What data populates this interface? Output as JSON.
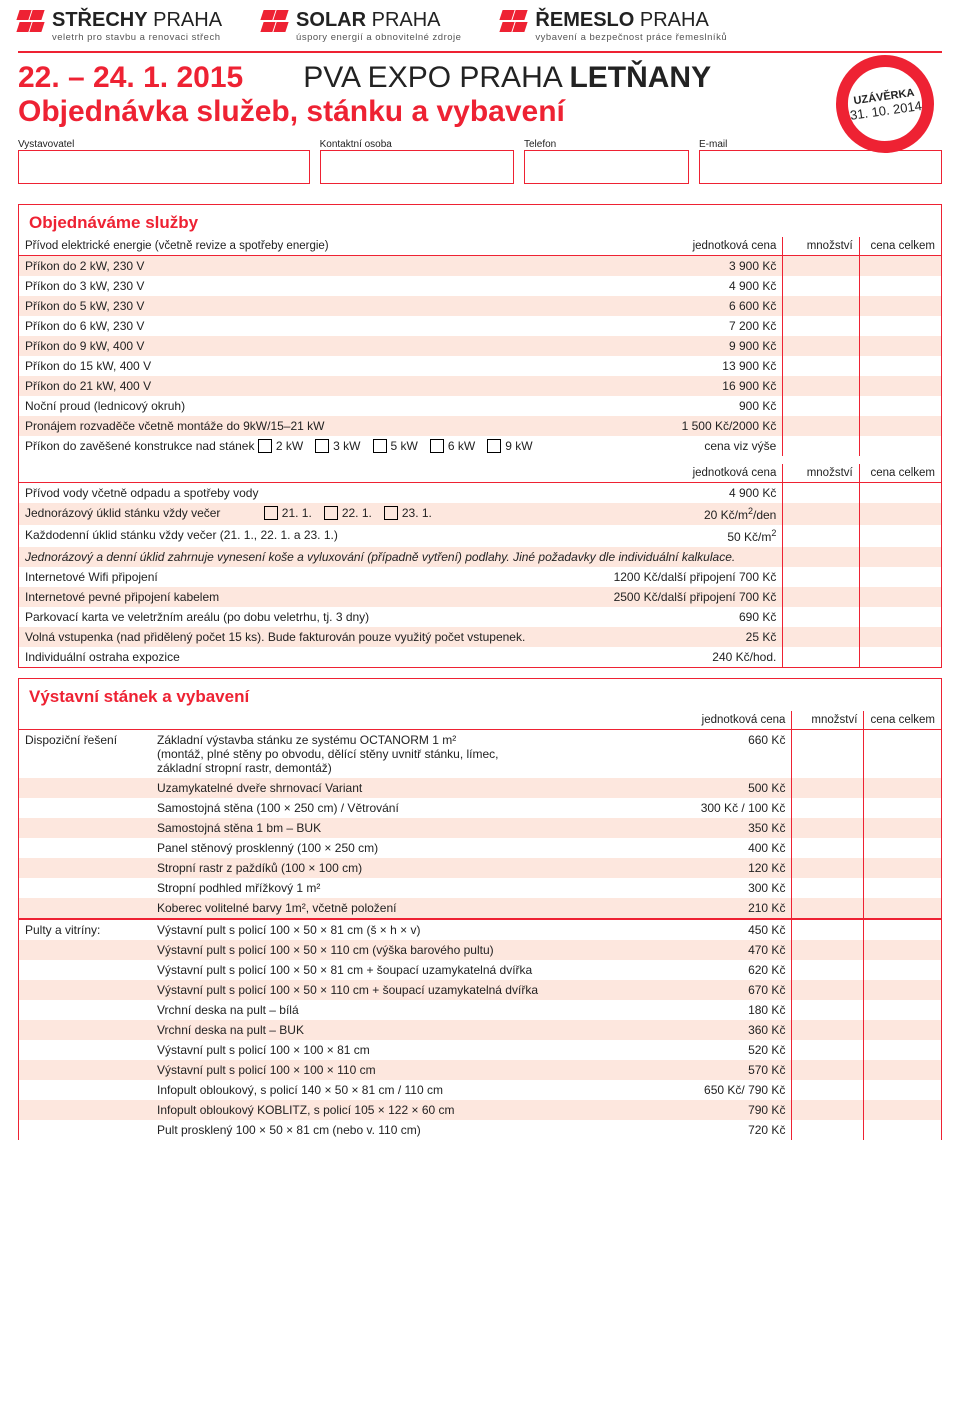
{
  "logos": [
    {
      "title_bold": "STŘECHY",
      "title_light": " PRAHA",
      "sub": "veletrh pro stavbu a renovaci střech"
    },
    {
      "title_bold": "SOLAR",
      "title_light": " PRAHA",
      "sub": "úspory energií a obnovitelné zdroje"
    },
    {
      "title_bold": "ŘEMESLO",
      "title_light": " PRAHA",
      "sub": "vybavení a bezpečnost práce řemeslníků"
    }
  ],
  "header": {
    "date": "22. – 24. 1. 2015",
    "venue_light": "PVA EXPO PRAHA ",
    "venue_bold": "LETŇANY",
    "subtitle": "Objednávka služeb, stánku a vybavení",
    "stamp_l1": "UZÁVĚRKA",
    "stamp_l2": "31. 10. 2014"
  },
  "fields": {
    "a": "Vystavovatel",
    "b": "Kontaktní osoba",
    "c": "Telefon",
    "d": "E-mail"
  },
  "col": {
    "unit": "jednotková cena",
    "qty": "množství",
    "total": "cena celkem"
  },
  "services": {
    "title": "Objednáváme služby",
    "head": "Přívod elektrické energie (včetně revize a spotřeby energie)",
    "rows": [
      {
        "label": "Příkon do 2 kW, 230 V",
        "price": "3 900 Kč",
        "stripe": true
      },
      {
        "label": "Příkon do 3 kW, 230 V",
        "price": "4 900 Kč",
        "stripe": false
      },
      {
        "label": "Příkon do 5 kW, 230 V",
        "price": "6 600 Kč",
        "stripe": true
      },
      {
        "label": "Příkon do 6 kW, 230 V",
        "price": "7 200 Kč",
        "stripe": false
      },
      {
        "label": "Příkon do 9 kW, 400 V",
        "price": "9 900 Kč",
        "stripe": true
      },
      {
        "label": "Příkon do 15 kW, 400 V",
        "price": "13 900 Kč",
        "stripe": false
      },
      {
        "label": "Příkon do 21 kW, 400 V",
        "price": "16 900 Kč",
        "stripe": true
      },
      {
        "label": "Noční proud (lednicový okruh)",
        "price": "900 Kč",
        "stripe": false
      },
      {
        "label": "Pronájem rozvaděče včetně montáže do 9kW/15–21 kW",
        "price": "1 500 Kč/2000 Kč",
        "stripe": true
      }
    ],
    "kw_row": {
      "label": "Příkon do zavěšené konstrukce nad stánek",
      "opts": [
        "2 kW",
        "3 kW",
        "5 kW",
        "6 kW",
        "9 kW"
      ],
      "price": "cena viz výše"
    },
    "rows2": [
      {
        "label": "Přívod vody včetně odpadu a spotřeby vody",
        "price": "4 900 Kč",
        "stripe": false
      }
    ],
    "clean_row": {
      "label": "Jednorázový úklid stánku vždy večer",
      "opts": [
        "21. 1.",
        "22. 1.",
        "23. 1."
      ],
      "price_html": "20 Kč/m²/den"
    },
    "daily_clean": {
      "label": "Každodenní úklid stánku vždy večer (21. 1., 22. 1. a 23. 1.)",
      "price_html": "50 Kč/m²"
    },
    "note": "Jednorázový a denní úklid zahrnuje vynesení koše a vyluxování (případně vytření) podlahy. Jiné požadavky dle individuální kalkulace.",
    "rows3": [
      {
        "label": "Internetové Wifi připojení",
        "price": "1200 Kč/další připojení 700 Kč",
        "stripe": false
      },
      {
        "label": "Internetové pevné připojení kabelem",
        "price": "2500 Kč/další připojení 700 Kč",
        "stripe": true
      },
      {
        "label": "Parkovací karta ve veletržním areálu (po dobu veletrhu, tj. 3 dny)",
        "price": "690 Kč",
        "stripe": false
      },
      {
        "label": "Volná vstupenka (nad přidělený počet 15 ks). Bude fakturován pouze využitý počet vstupenek.",
        "price": "25 Kč",
        "stripe": true
      },
      {
        "label": "Individuální ostraha expozice",
        "price": "240 Kč/hod.",
        "stripe": false
      }
    ]
  },
  "stand": {
    "title": "Výstavní stánek a vybavení",
    "group1_lead": "Dispoziční řešení",
    "group1": [
      {
        "label_html": "Základní výstavba stánku ze systému OCTANORM 1 m²<br>(montáž, plné stěny po obvodu, dělící stěny uvnitř stánku, límec,<br>základní stropní rastr, demontáž)",
        "price": "660 Kč",
        "stripe": false
      },
      {
        "label": "Uzamykatelné dveře shrnovací Variant",
        "price": "500 Kč",
        "stripe": true
      },
      {
        "label": "Samostojná stěna (100 × 250 cm) / Větrování",
        "price": "300 Kč / 100 Kč",
        "stripe": false
      },
      {
        "label": "Samostojná stěna 1 bm – BUK",
        "price": "350 Kč",
        "stripe": true
      },
      {
        "label": "Panel stěnový prosklenný (100 × 250 cm)",
        "price": "400 Kč",
        "stripe": false
      },
      {
        "label": "Stropní rastr z paždíků (100 × 100 cm)",
        "price": "120 Kč",
        "stripe": true
      },
      {
        "label_html": "Stropní podhled mřížkový 1 m²",
        "price": "300 Kč",
        "stripe": false
      },
      {
        "label_html": "Koberec volitelné barvy 1m², včetně položení",
        "price": "210 Kč",
        "stripe": true
      }
    ],
    "group2_lead": "Pulty a vitríny:",
    "group2": [
      {
        "label": "Výstavní pult s policí 100 × 50 × 81 cm (š × h × v)",
        "price": "450 Kč",
        "stripe": false
      },
      {
        "label": "Výstavní pult s policí 100 × 50 × 110 cm (výška barového pultu)",
        "price": "470 Kč",
        "stripe": true
      },
      {
        "label": "Výstavní pult s policí 100 × 50 × 81 cm + šoupací uzamykatelná dvířka",
        "price": "620 Kč",
        "stripe": false
      },
      {
        "label": "Výstavní pult s policí 100 × 50 × 110 cm + šoupací uzamykatelná dvířka",
        "price": "670 Kč",
        "stripe": true
      },
      {
        "label": "Vrchní deska na pult – bílá",
        "price": "180 Kč",
        "stripe": false
      },
      {
        "label": "Vrchní deska na pult – BUK",
        "price": "360 Kč",
        "stripe": true
      },
      {
        "label": "Výstavní pult s policí 100 × 100 × 81 cm",
        "price": "520 Kč",
        "stripe": false
      },
      {
        "label": "Výstavní pult s policí 100 × 100 × 110 cm",
        "price": "570 Kč",
        "stripe": true
      },
      {
        "label": "Infopult obloukový, s policí 140 × 50 × 81 cm / 110 cm",
        "price": "650 Kč/ 790 Kč",
        "stripe": false
      },
      {
        "label": "Infopult obloukový KOBLITZ, s policí 105 × 122 × 60 cm",
        "price": "790 Kč",
        "stripe": true
      },
      {
        "label": "Pult prosklený 100 × 50 × 81 cm (nebo v. 110 cm)",
        "price": "720 Kč",
        "stripe": false
      }
    ]
  }
}
